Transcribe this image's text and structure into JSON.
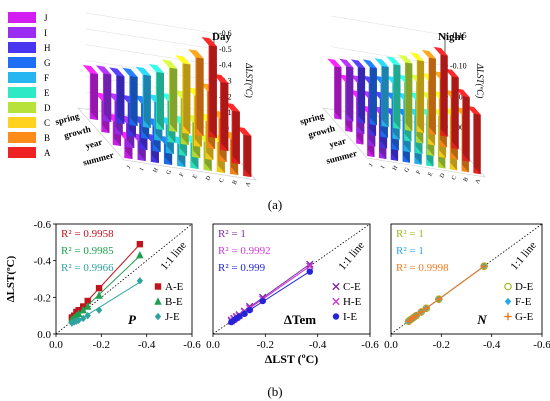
{
  "figure": {
    "label_a": "(a)",
    "label_b": "(b)"
  },
  "legend_a": [
    {
      "key": "J",
      "color": "#d21ef0"
    },
    {
      "key": "I",
      "color": "#9b2cf2"
    },
    {
      "key": "H",
      "color": "#4a35f0"
    },
    {
      "key": "G",
      "color": "#1e6ef6"
    },
    {
      "key": "F",
      "color": "#27b6f2"
    },
    {
      "key": "E",
      "color": "#2ee9c5"
    },
    {
      "key": "D",
      "color": "#b7e23a"
    },
    {
      "key": "C",
      "color": "#ffd21f"
    },
    {
      "key": "B",
      "color": "#ff8c1a"
    },
    {
      "key": "A",
      "color": "#ee2222"
    }
  ],
  "chart_data": [
    {
      "type": "bar",
      "title": "Day",
      "zlabel": "ΔLST(ºC)",
      "ticks": [
        "-0.6",
        "-0.5",
        "-0.4",
        "-0.3",
        "-0.2",
        "-0.1",
        "0.0"
      ],
      "zlim": [
        0,
        -0.6
      ],
      "categories": [
        "spring",
        "growth",
        "year",
        "summer"
      ],
      "series_keys": [
        "J",
        "I",
        "H",
        "G",
        "F",
        "E",
        "D",
        "C",
        "B",
        "A"
      ],
      "values": [
        [
          -0.29,
          -0.3,
          -0.3,
          -0.31,
          -0.33,
          -0.36,
          -0.4,
          -0.44,
          -0.49,
          -0.58
        ],
        [
          -0.2,
          -0.21,
          -0.21,
          -0.22,
          -0.24,
          -0.26,
          -0.29,
          -0.32,
          -0.36,
          -0.43
        ],
        [
          -0.15,
          -0.15,
          -0.16,
          -0.16,
          -0.18,
          -0.2,
          -0.22,
          -0.24,
          -0.27,
          -0.33
        ],
        [
          -0.12,
          -0.12,
          -0.13,
          -0.13,
          -0.14,
          -0.16,
          -0.18,
          -0.19,
          -0.22,
          -0.26
        ]
      ]
    },
    {
      "type": "bar",
      "title": "Night",
      "zlabel": "ΔLST(ºC)",
      "ticks": [
        "-0.15",
        "-0.10",
        "-0.05",
        "0.00"
      ],
      "zlim": [
        0,
        -0.15
      ],
      "categories": [
        "spring",
        "growth",
        "year",
        "summer"
      ],
      "series_keys": [
        "J",
        "I",
        "H",
        "G",
        "F",
        "E",
        "D",
        "C",
        "B",
        "A"
      ],
      "values": [
        [
          -0.085,
          -0.088,
          -0.09,
          -0.093,
          -0.098,
          -0.104,
          -0.11,
          -0.117,
          -0.124,
          -0.132
        ],
        [
          -0.08,
          -0.082,
          -0.084,
          -0.087,
          -0.09,
          -0.095,
          -0.099,
          -0.104,
          -0.11,
          -0.117
        ],
        [
          -0.075,
          -0.077,
          -0.079,
          -0.081,
          -0.083,
          -0.087,
          -0.091,
          -0.095,
          -0.1,
          -0.105
        ],
        [
          -0.07,
          -0.072,
          -0.073,
          -0.075,
          -0.078,
          -0.081,
          -0.084,
          -0.088,
          -0.092,
          -0.097
        ]
      ]
    },
    {
      "type": "scatter",
      "panel_label": "P",
      "xlabel": "ΔLST (ºC)",
      "ylabel": "ΔLST(ºC)",
      "xlim": [
        0,
        -0.6
      ],
      "ylim": [
        0,
        -0.6
      ],
      "xticks": [
        "0.0",
        "-0.2",
        "-0.4",
        "-0.6"
      ],
      "yticks": [
        "-0.6",
        "-0.4",
        "-0.2",
        "0.0"
      ],
      "line_label": "1:1 line",
      "series": [
        {
          "name": "A-E",
          "r2": "R² = 0.9958",
          "color": "#c0141e",
          "marker": "square",
          "x": [
            -0.07,
            -0.08,
            -0.09,
            -0.1,
            -0.12,
            -0.14,
            -0.19,
            -0.37
          ],
          "y": [
            -0.09,
            -0.1,
            -0.12,
            -0.13,
            -0.15,
            -0.18,
            -0.25,
            -0.49
          ]
        },
        {
          "name": "B-E",
          "r2": "R² = 0.9985",
          "color": "#1fa050",
          "marker": "triangle",
          "x": [
            -0.07,
            -0.08,
            -0.09,
            -0.1,
            -0.12,
            -0.14,
            -0.19,
            -0.37
          ],
          "y": [
            -0.08,
            -0.09,
            -0.1,
            -0.11,
            -0.13,
            -0.15,
            -0.21,
            -0.43
          ]
        },
        {
          "name": "J-E",
          "r2": "R² = 0.9966",
          "color": "#2fa3a0",
          "marker": "diamond",
          "x": [
            -0.07,
            -0.08,
            -0.09,
            -0.1,
            -0.12,
            -0.14,
            -0.19,
            -0.37
          ],
          "y": [
            -0.06,
            -0.065,
            -0.07,
            -0.075,
            -0.085,
            -0.1,
            -0.13,
            -0.29
          ]
        }
      ]
    },
    {
      "type": "scatter",
      "panel_label": "ΔTem",
      "xlabel": "ΔLST (ºC)",
      "xlim": [
        0,
        -0.6
      ],
      "ylim": [
        0,
        -0.6
      ],
      "xticks": [
        "0.0",
        "-0.2",
        "-0.4",
        "-0.6"
      ],
      "line_label": "1:1 line",
      "series": [
        {
          "name": "C-E",
          "r2": "R² = 1",
          "color": "#7a2fa8",
          "marker": "x",
          "x": [
            -0.07,
            -0.08,
            -0.09,
            -0.1,
            -0.12,
            -0.14,
            -0.19,
            -0.37
          ],
          "y": [
            -0.075,
            -0.085,
            -0.095,
            -0.105,
            -0.125,
            -0.15,
            -0.2,
            -0.38
          ]
        },
        {
          "name": "H-E",
          "r2": "R² = 0.9992",
          "color": "#d13ad6",
          "marker": "x",
          "x": [
            -0.07,
            -0.08,
            -0.09,
            -0.1,
            -0.12,
            -0.14,
            -0.19,
            -0.37
          ],
          "y": [
            -0.07,
            -0.08,
            -0.09,
            -0.1,
            -0.12,
            -0.14,
            -0.19,
            -0.37
          ]
        },
        {
          "name": "I-E",
          "r2": "R² = 0.999",
          "color": "#2424d6",
          "marker": "circle",
          "x": [
            -0.07,
            -0.08,
            -0.09,
            -0.1,
            -0.12,
            -0.14,
            -0.19,
            -0.37
          ],
          "y": [
            -0.065,
            -0.075,
            -0.085,
            -0.095,
            -0.11,
            -0.13,
            -0.18,
            -0.34
          ]
        }
      ]
    },
    {
      "type": "scatter",
      "panel_label": "N",
      "xlabel": "ΔLST (ºC)",
      "xlim": [
        0,
        -0.6
      ],
      "ylim": [
        0,
        -0.6
      ],
      "xticks": [
        "0.0",
        "-0.2",
        "-0.4",
        "-0.6"
      ],
      "line_label": "1:1 line",
      "series": [
        {
          "name": "D-E",
          "r2": "R² = 1",
          "color": "#9bb81e",
          "marker": "circle-open",
          "x": [
            -0.07,
            -0.08,
            -0.09,
            -0.1,
            -0.12,
            -0.14,
            -0.19,
            -0.37
          ],
          "y": [
            -0.07,
            -0.08,
            -0.09,
            -0.1,
            -0.12,
            -0.14,
            -0.19,
            -0.37
          ]
        },
        {
          "name": "F-E",
          "r2": "R² = 1",
          "color": "#2aa7e6",
          "marker": "diamond",
          "x": [
            -0.07,
            -0.08,
            -0.09,
            -0.1,
            -0.12,
            -0.14,
            -0.19,
            -0.37
          ],
          "y": [
            -0.07,
            -0.08,
            -0.09,
            -0.1,
            -0.12,
            -0.14,
            -0.19,
            -0.37
          ]
        },
        {
          "name": "G-E",
          "r2": "R² = 0.9998",
          "color": "#ee7a1e",
          "marker": "plus",
          "x": [
            -0.07,
            -0.08,
            -0.09,
            -0.1,
            -0.12,
            -0.14,
            -0.19,
            -0.37
          ],
          "y": [
            -0.07,
            -0.08,
            -0.09,
            -0.1,
            -0.12,
            -0.14,
            -0.19,
            -0.37
          ]
        }
      ]
    }
  ]
}
